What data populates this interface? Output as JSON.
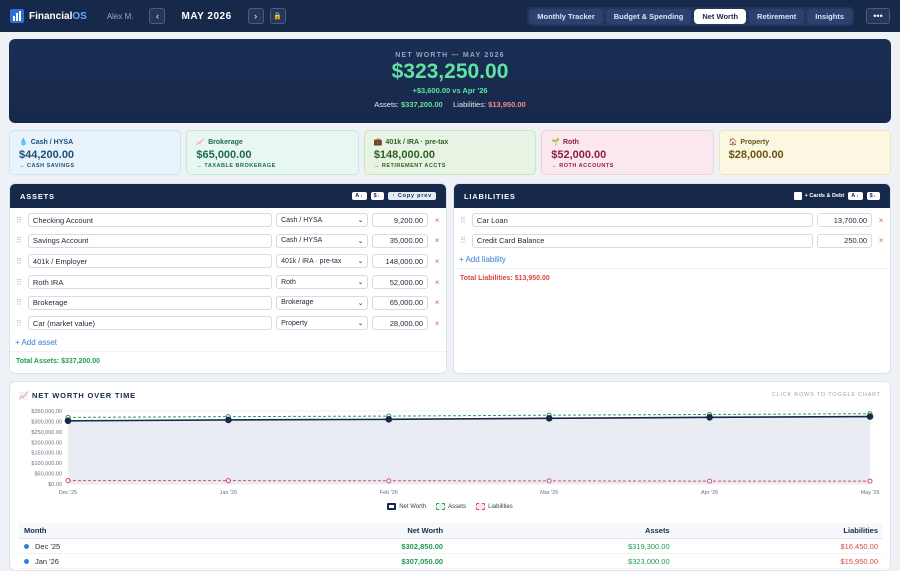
{
  "app": {
    "name_main": "Financial",
    "name_accent": "OS",
    "user": "Alex M.",
    "prev": "‹",
    "next": "›",
    "lock": "🔒",
    "month": "MAY 2026"
  },
  "tabs": [
    {
      "label": "Monthly Tracker",
      "active": false
    },
    {
      "label": "Budget & Spending",
      "active": false
    },
    {
      "label": "Net Worth",
      "active": true
    },
    {
      "label": "Retirement",
      "active": false
    },
    {
      "label": "Insights",
      "active": false
    }
  ],
  "menu": "•••",
  "hero": {
    "label": "NET WORTH — MAY 2026",
    "value": "$323,250.00",
    "delta": "+$3,600.00 vs Apr '26",
    "assets_label": "Assets:",
    "assets_value": "$337,200.00",
    "liabilities_label": "Liabilities:",
    "liabilities_value": "$13,950.00"
  },
  "cards": [
    {
      "icon": "💧",
      "title": "Cash / HYSA",
      "value": "$44,200.00",
      "sub": "→ CASH SAVINGS",
      "bg": "#e9f3fb",
      "border": "#cfe2f2",
      "color": "#1b4f7a"
    },
    {
      "icon": "📈",
      "title": "Brokerage",
      "value": "$65,000.00",
      "sub": "→ TAXABLE BROKERAGE",
      "bg": "#e8f7f1",
      "border": "#c6e9d9",
      "color": "#1b6b4d"
    },
    {
      "icon": "💼",
      "title": "401k / IRA · pre-tax",
      "value": "$148,000.00",
      "sub": "→ RETIREMENT ACCTS",
      "bg": "#e8f4e3",
      "border": "#cce5c0",
      "color": "#2f6121"
    },
    {
      "icon": "🌱",
      "title": "Roth",
      "value": "$52,000.00",
      "sub": "→ ROTH ACCOUNTS",
      "bg": "#fbe8ee",
      "border": "#f1cfd9",
      "color": "#8f1f3d"
    },
    {
      "icon": "🏠",
      "title": "Property",
      "value": "$28,000.00",
      "sub": "",
      "bg": "#fcf7e1",
      "border": "#efe4b6",
      "color": "#6b5310"
    }
  ],
  "assets": {
    "title": "ASSETS",
    "sort_az": "A↓",
    "sort_amt": "$↓",
    "copy": "↑ Copy prev",
    "rows": [
      {
        "name": "Checking Account",
        "type": "Cash / HYSA",
        "amount": "9,200.00"
      },
      {
        "name": "Savings Account",
        "type": "Cash / HYSA",
        "amount": "35,000.00"
      },
      {
        "name": "401k / Employer",
        "type": "401k / IRA · pre-tax",
        "amount": "148,000.00"
      },
      {
        "name": "Roth IRA",
        "type": "Roth",
        "amount": "52,000.00"
      },
      {
        "name": "Brokerage",
        "type": "Brokerage",
        "amount": "65,000.00"
      },
      {
        "name": "Car (market value)",
        "type": "Property",
        "amount": "28,000.00"
      }
    ],
    "add": "+ Add asset",
    "total": "Total Assets: $337,200.00"
  },
  "liabilities": {
    "title": "LIABILITIES",
    "cards_debt": "+ Cards & Debt",
    "sort_az": "A↓",
    "sort_amt": "$↓",
    "rows": [
      {
        "name": "Car Loan",
        "amount": "13,700.00"
      },
      {
        "name": "Credit Card Balance",
        "amount": "250.00"
      }
    ],
    "add": "+ Add liability",
    "total": "Total Liabilities: $13,950.00"
  },
  "chart": {
    "title": "📈 NET WORTH OVER TIME",
    "hint": "CLICK ROWS TO TOGGLE CHART"
  },
  "chart_data": {
    "type": "line",
    "x": [
      "Dec '25",
      "Jan '26",
      "Feb '26",
      "Mar '26",
      "Apr '26",
      "May '26"
    ],
    "y_ticks": [
      "$0.00",
      "$50,000.00",
      "$100,000.00",
      "$150,000.00",
      "$200,000.00",
      "$250,000.00",
      "$300,000.00",
      "$350,000.00"
    ],
    "ylim": [
      0,
      350000
    ],
    "series": [
      {
        "name": "Net Worth",
        "values": [
          302850,
          307050,
          310000,
          315000,
          319650,
          323250
        ],
        "color": "#17294a"
      },
      {
        "name": "Assets",
        "values": [
          319300,
          323000,
          325500,
          330000,
          333500,
          337200
        ],
        "color": "#2f9a5a"
      },
      {
        "name": "Liabilities",
        "values": [
          16450,
          15950,
          15500,
          15000,
          13850,
          13950
        ],
        "color": "#d9477a"
      }
    ]
  },
  "table": {
    "headers": [
      "Month",
      "Net Worth",
      "Assets",
      "Liabilities"
    ],
    "rows": [
      {
        "month": "Dec '25",
        "net": "$302,850.00",
        "assets": "$319,300.00",
        "liab": "$16,450.00"
      },
      {
        "month": "Jan '26",
        "net": "$307,050.00",
        "assets": "$323,000.00",
        "liab": "$15,950.00"
      }
    ]
  }
}
